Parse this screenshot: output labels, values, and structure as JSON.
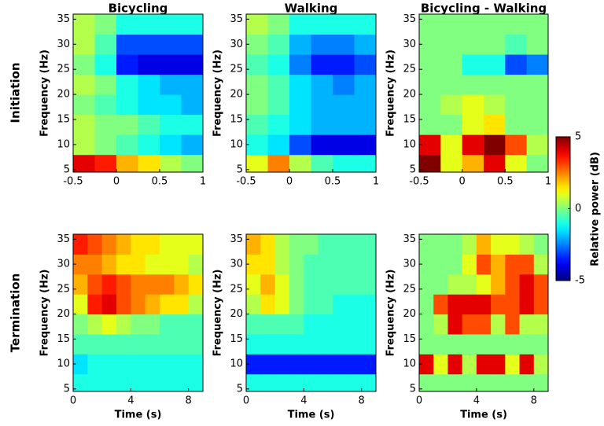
{
  "row_labels": [
    "Initiation",
    "Termination"
  ],
  "colorbar": {
    "label": "Relative power (dB)",
    "clim": [
      -5,
      5
    ],
    "ticks": [
      -5,
      0,
      5
    ]
  },
  "chart_data": [
    {
      "type": "heatmap",
      "title": "Bicycling",
      "ylabel": "Frequency (Hz)",
      "x": [
        -0.375,
        -0.125,
        0.125,
        0.375,
        0.625,
        0.875
      ],
      "y": [
        6,
        10,
        14,
        18,
        22,
        26,
        30,
        34
      ],
      "z": [
        [
          4,
          3.5,
          2,
          1.5,
          0.5,
          0
        ],
        [
          0.5,
          0,
          -0.5,
          -1,
          -1.5,
          -2
        ],
        [
          0.5,
          0,
          0,
          -0.5,
          -1,
          -1
        ],
        [
          0,
          -0.5,
          -1,
          -1.5,
          -1.5,
          -2
        ],
        [
          0.5,
          0,
          -1,
          -1.5,
          -2,
          -2
        ],
        [
          0,
          -1,
          -3.5,
          -4,
          -4,
          -4
        ],
        [
          0.5,
          -0.5,
          -3,
          -3,
          -3,
          -3
        ],
        [
          0.5,
          0,
          -1,
          -1,
          -1,
          -1
        ]
      ],
      "xlim": [
        -0.5,
        1
      ],
      "ylim": [
        4.5,
        36
      ],
      "xticks": [
        -0.5,
        0,
        0.5,
        1
      ],
      "yticks": [
        5,
        10,
        15,
        20,
        25,
        30,
        35
      ]
    },
    {
      "type": "heatmap",
      "title": "Walking",
      "ylabel": "Frequency (Hz)",
      "x": [
        -0.375,
        -0.125,
        0.125,
        0.375,
        0.625,
        0.875
      ],
      "y": [
        6,
        10,
        14,
        18,
        22,
        26,
        30,
        34
      ],
      "z": [
        [
          1,
          2.5,
          0.5,
          -0.5,
          -1,
          -1
        ],
        [
          -1,
          -1.5,
          -3,
          -4,
          -4,
          -4
        ],
        [
          -0.5,
          -1,
          -1.5,
          -2,
          -2,
          -2
        ],
        [
          0,
          -0.5,
          -1.5,
          -2,
          -2,
          -2
        ],
        [
          0,
          -0.5,
          -1.5,
          -2,
          -2.5,
          -2
        ],
        [
          -0.5,
          -1,
          -2.5,
          -3.5,
          -3.5,
          -3
        ],
        [
          0,
          -0.5,
          -2,
          -2.5,
          -2.5,
          -2
        ],
        [
          0.5,
          0,
          -1,
          -1,
          -1,
          -1
        ]
      ],
      "xlim": [
        -0.5,
        1
      ],
      "ylim": [
        4.5,
        36
      ],
      "xticks": [
        -0.5,
        0,
        0.5,
        1
      ],
      "yticks": [
        5,
        10,
        15,
        20,
        25,
        30,
        35
      ]
    },
    {
      "type": "heatmap",
      "title": "Bicycling - Walking",
      "ylabel": "Frequency (Hz)",
      "x": [
        -0.375,
        -0.125,
        0.125,
        0.375,
        0.625,
        0.875
      ],
      "y": [
        6,
        10,
        14,
        18,
        22,
        26,
        30,
        34
      ],
      "z": [
        [
          5,
          1,
          2,
          4,
          1,
          0
        ],
        [
          4,
          1,
          4,
          5,
          3,
          0.5
        ],
        [
          0,
          0,
          1,
          1.5,
          0,
          0
        ],
        [
          0,
          0.5,
          1,
          0.5,
          0,
          0
        ],
        [
          0,
          0,
          0,
          0,
          0,
          0
        ],
        [
          0,
          0,
          -1,
          -1,
          -3,
          -2.5
        ],
        [
          0,
          0,
          0,
          0,
          -0.5,
          0
        ],
        [
          0,
          0,
          0,
          0,
          0,
          0
        ]
      ],
      "xlim": [
        -0.5,
        1
      ],
      "ylim": [
        4.5,
        36
      ],
      "xticks": [
        -0.5,
        0,
        0.5,
        1
      ],
      "yticks": [
        5,
        10,
        15,
        20,
        25,
        30,
        35
      ]
    },
    {
      "type": "heatmap",
      "xlabel": "Time (s)",
      "ylabel": "Frequency (Hz)",
      "x": [
        0.5,
        1.5,
        2.5,
        3.5,
        4.5,
        5.5,
        6.5,
        7.5,
        8.5
      ],
      "y": [
        6,
        10,
        14,
        18,
        22,
        26,
        30,
        34
      ],
      "z": [
        [
          -1,
          -1,
          -1,
          -1,
          -1,
          -1,
          -1,
          -1,
          -1
        ],
        [
          -1.5,
          -1,
          -1,
          -1,
          -1,
          -1,
          -1,
          -1,
          -1
        ],
        [
          -0.5,
          -0.5,
          -0.5,
          -0.5,
          -0.5,
          -0.5,
          -0.5,
          -0.5,
          -0.5
        ],
        [
          0,
          0.5,
          1,
          0.5,
          0,
          0,
          -0.5,
          -0.5,
          -0.5
        ],
        [
          1,
          3.5,
          4,
          3,
          2.5,
          2,
          1.5,
          1.5,
          0.5
        ],
        [
          2,
          3,
          3.5,
          3,
          2.5,
          2.5,
          2.5,
          2,
          1.5
        ],
        [
          2.5,
          2.5,
          2,
          1.5,
          1.5,
          1,
          1,
          1,
          0.5
        ],
        [
          3.5,
          3,
          2.5,
          2,
          1.5,
          1.5,
          1,
          1,
          1
        ]
      ],
      "xlim": [
        0,
        9
      ],
      "ylim": [
        4.5,
        36
      ],
      "xticks": [
        0,
        4,
        8
      ],
      "yticks": [
        5,
        10,
        15,
        20,
        25,
        30,
        35
      ]
    },
    {
      "type": "heatmap",
      "xlabel": "Time (s)",
      "ylabel": "Frequency (Hz)",
      "x": [
        0.5,
        1.5,
        2.5,
        3.5,
        4.5,
        5.5,
        6.5,
        7.5,
        8.5
      ],
      "y": [
        6,
        10,
        14,
        18,
        22,
        26,
        30,
        34
      ],
      "z": [
        [
          -1,
          -1,
          -1,
          -1,
          -1,
          -1,
          -1,
          -1,
          -1
        ],
        [
          -3.5,
          -3.5,
          -3.5,
          -3.5,
          -3.5,
          -3.5,
          -3.5,
          -3.5,
          -3.5
        ],
        [
          -1,
          -1,
          -1,
          -1,
          -1,
          -1,
          -1,
          -1,
          -1
        ],
        [
          -0.5,
          -0.5,
          -0.5,
          -0.5,
          -1,
          -1,
          -1,
          -1,
          -1
        ],
        [
          0.5,
          1.5,
          1,
          0,
          -0.5,
          -0.5,
          -1,
          -1,
          -1
        ],
        [
          1,
          2,
          1,
          0,
          -0.5,
          -0.5,
          -0.5,
          -0.5,
          -0.5
        ],
        [
          1.5,
          1.5,
          0.5,
          0,
          -0.5,
          -0.5,
          -0.5,
          -0.5,
          -0.5
        ],
        [
          2,
          1.5,
          0.5,
          0,
          0,
          -0.5,
          -0.5,
          -0.5,
          -0.5
        ]
      ],
      "xlim": [
        0,
        9
      ],
      "ylim": [
        4.5,
        36
      ],
      "xticks": [
        0,
        4,
        8
      ],
      "yticks": [
        5,
        10,
        15,
        20,
        25,
        30,
        35
      ]
    },
    {
      "type": "heatmap",
      "xlabel": "Time (s)",
      "ylabel": "Frequency (Hz)",
      "x": [
        0.5,
        1.5,
        2.5,
        3.5,
        4.5,
        5.5,
        6.5,
        7.5,
        8.5
      ],
      "y": [
        6,
        10,
        14,
        18,
        22,
        26,
        30,
        34
      ],
      "z": [
        [
          0,
          0,
          0,
          0,
          0,
          0,
          0,
          0,
          0
        ],
        [
          4,
          1,
          4,
          0.5,
          4,
          4,
          1,
          4,
          0.5
        ],
        [
          0,
          0,
          0,
          0,
          0,
          0,
          0,
          0,
          0
        ],
        [
          0,
          0.5,
          4,
          3,
          3,
          0.5,
          3,
          0.5,
          0.5
        ],
        [
          0,
          3,
          4,
          4,
          4,
          3,
          3,
          4,
          3
        ],
        [
          0,
          0,
          0.5,
          0.5,
          1,
          2,
          3,
          4,
          3
        ],
        [
          0,
          0,
          0,
          1,
          3,
          2,
          3,
          3,
          0.5
        ],
        [
          0,
          0,
          0,
          0.5,
          2,
          1,
          1,
          0.5,
          0
        ]
      ],
      "xlim": [
        0,
        9
      ],
      "ylim": [
        4.5,
        36
      ],
      "xticks": [
        0,
        4,
        8
      ],
      "yticks": [
        5,
        10,
        15,
        20,
        25,
        30,
        35
      ]
    }
  ]
}
